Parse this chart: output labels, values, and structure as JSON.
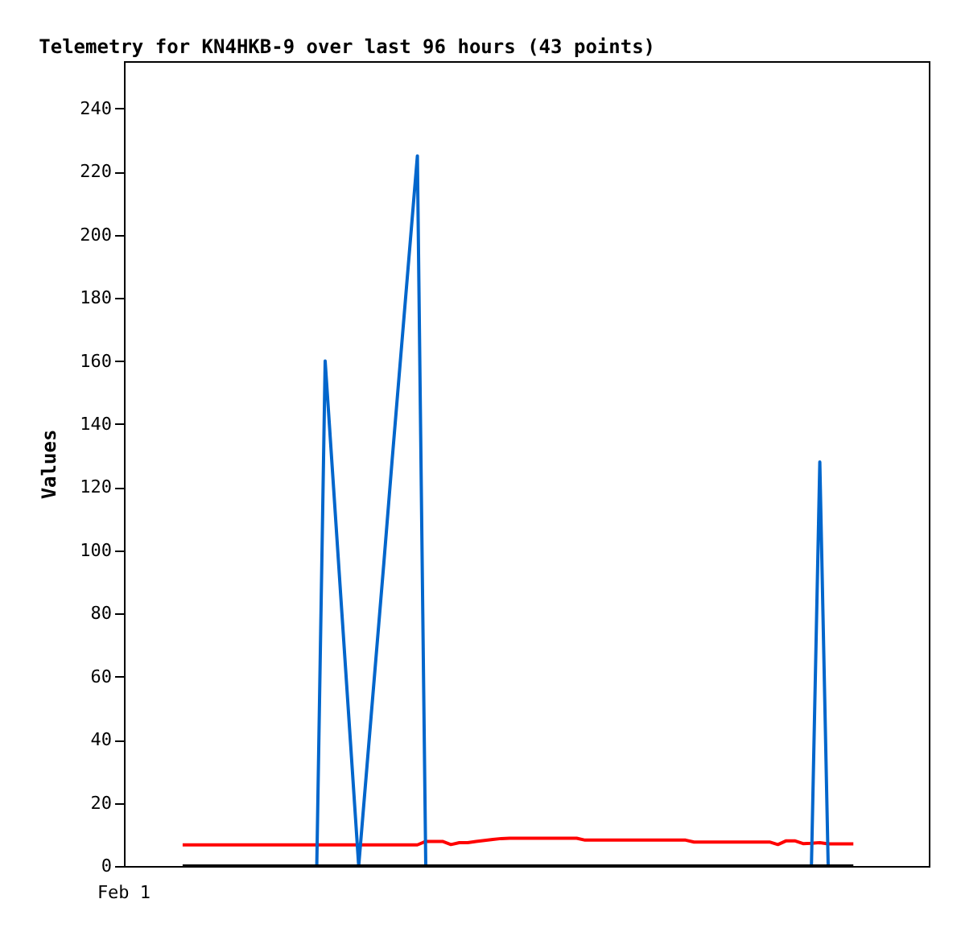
{
  "chart_data": {
    "type": "line",
    "title": "Telemetry for KN4HKB-9 over last 96 hours (43 points)",
    "ylabel": "Values",
    "annotations": [
      "Feb 1"
    ],
    "categories": [
      null,
      null,
      null,
      null,
      null,
      null,
      null,
      null,
      null,
      null,
      null,
      null,
      null,
      null,
      null,
      null,
      null,
      null,
      null,
      null,
      null,
      null,
      null,
      null,
      null,
      null,
      null,
      null,
      null,
      null,
      null,
      null,
      null,
      null,
      null,
      null,
      null,
      null,
      null,
      null,
      null,
      null,
      null,
      null,
      null,
      null,
      null,
      null,
      null,
      null,
      null,
      null,
      null,
      null,
      null,
      null,
      null,
      null,
      null,
      null,
      null,
      null,
      null,
      null,
      null,
      null,
      null,
      null,
      null,
      null,
      null,
      null,
      null,
      null,
      null,
      null,
      null,
      null,
      null,
      null,
      null,
      null,
      null,
      null,
      null,
      null,
      null,
      null,
      null,
      null,
      null,
      null,
      null,
      null,
      null,
      null,
      null
    ],
    "ylim": [
      0,
      255
    ],
    "yticks": [
      0,
      20,
      40,
      60,
      80,
      100,
      120,
      140,
      160,
      180,
      200,
      220,
      240
    ],
    "grid": false,
    "legend": false,
    "marker": "none",
    "line_style": "solid",
    "series": [
      {
        "color": "#ff0000",
        "values": [
          null,
          null,
          null,
          null,
          null,
          null,
          null,
          6.7,
          6.7,
          6.7,
          6.7,
          6.7,
          6.7,
          6.7,
          6.7,
          6.7,
          6.7,
          6.7,
          6.7,
          6.7,
          6.7,
          6.7,
          6.7,
          6.7,
          6.7,
          6.7,
          6.7,
          6.7,
          6.7,
          6.7,
          6.7,
          6.7,
          6.7,
          6.7,
          6.7,
          6.7,
          7.8,
          7.8,
          7.8,
          6.8,
          7.4,
          7.4,
          7.8,
          8.1,
          8.4,
          8.7,
          8.8,
          8.8,
          8.8,
          8.8,
          8.8,
          8.8,
          8.8,
          8.8,
          8.8,
          8.2,
          8.2,
          8.2,
          8.2,
          8.2,
          8.2,
          8.2,
          8.2,
          8.2,
          8.2,
          8.2,
          8.2,
          8.2,
          7.6,
          7.6,
          7.6,
          7.6,
          7.6,
          7.6,
          7.6,
          7.6,
          7.6,
          7.6,
          6.8,
          8.0,
          8.0,
          7.1,
          7.2,
          7.4,
          7.0,
          7.0,
          7.0,
          7.0,
          null,
          null,
          null,
          null,
          null,
          null,
          null,
          null,
          null
        ]
      },
      {
        "color": "#0066cc",
        "values": [
          null,
          null,
          null,
          null,
          null,
          null,
          null,
          null,
          null,
          null,
          null,
          null,
          null,
          null,
          null,
          null,
          null,
          null,
          null,
          null,
          null,
          null,
          null,
          0,
          160,
          120,
          80,
          40,
          0,
          32,
          64,
          96,
          129,
          161,
          193,
          225,
          0,
          null,
          null,
          null,
          null,
          null,
          null,
          null,
          null,
          null,
          null,
          null,
          null,
          null,
          null,
          null,
          null,
          null,
          null,
          null,
          null,
          null,
          null,
          null,
          null,
          null,
          null,
          null,
          null,
          null,
          null,
          null,
          null,
          null,
          null,
          null,
          null,
          null,
          null,
          null,
          null,
          null,
          null,
          null,
          null,
          null,
          0,
          128,
          0,
          null,
          null,
          null,
          null,
          null,
          null,
          null,
          null,
          null,
          null,
          null,
          null
        ]
      },
      {
        "color": "#000000",
        "values": [
          null,
          null,
          null,
          null,
          null,
          null,
          null,
          0,
          0,
          0,
          0,
          0,
          0,
          0,
          0,
          0,
          0,
          0,
          0,
          0,
          0,
          0,
          0,
          0,
          0,
          0,
          0,
          0,
          0,
          0,
          0,
          0,
          0,
          0,
          0,
          0,
          0,
          0,
          0,
          0,
          0,
          0,
          0,
          0,
          0,
          0,
          0,
          0,
          0,
          0,
          0,
          0,
          0,
          0,
          0,
          0,
          0,
          0,
          0,
          0,
          0,
          0,
          0,
          0,
          0,
          0,
          0,
          0,
          0,
          0,
          0,
          0,
          0,
          0,
          0,
          0,
          0,
          0,
          0,
          0,
          0,
          0,
          0,
          0,
          0,
          0,
          0,
          0,
          null,
          null,
          null,
          null,
          null,
          null,
          null,
          null,
          null
        ]
      }
    ]
  }
}
